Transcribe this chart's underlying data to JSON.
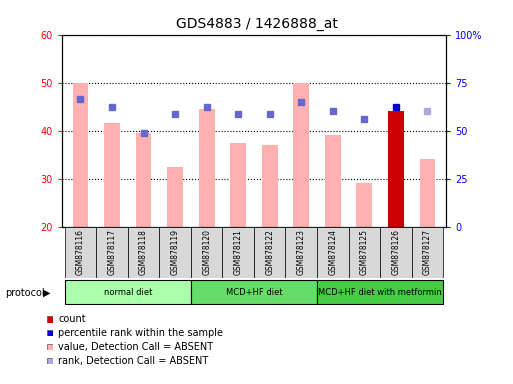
{
  "title": "GDS4883 / 1426888_at",
  "samples": [
    "GSM878116",
    "GSM878117",
    "GSM878118",
    "GSM878119",
    "GSM878120",
    "GSM878121",
    "GSM878122",
    "GSM878123",
    "GSM878124",
    "GSM878125",
    "GSM878126",
    "GSM878127"
  ],
  "bar_values": [
    50,
    41.5,
    39.5,
    32.5,
    44.5,
    37.5,
    37,
    50,
    39,
    29,
    44,
    34
  ],
  "bar_colors": [
    "#ffb0b0",
    "#ffb0b0",
    "#ffb0b0",
    "#ffb0b0",
    "#ffb0b0",
    "#ffb0b0",
    "#ffb0b0",
    "#ffb0b0",
    "#ffb0b0",
    "#ffb0b0",
    "#cc0000",
    "#ffb0b0"
  ],
  "dot_values": [
    46.5,
    45,
    39.5,
    43.5,
    45,
    43.5,
    43.5,
    46,
    44,
    42.5,
    45,
    44
  ],
  "dot_colors": [
    "#6666cc",
    "#6666cc",
    "#6666cc",
    "#6666cc",
    "#6666cc",
    "#6666cc",
    "#6666cc",
    "#6666cc",
    "#6666cc",
    "#6666cc",
    "#0000cc",
    "#aaaadd"
  ],
  "ylim": [
    20,
    60
  ],
  "y2lim": [
    0,
    100
  ],
  "yticks": [
    20,
    30,
    40,
    50,
    60
  ],
  "y2ticks": [
    0,
    25,
    50,
    75,
    100
  ],
  "y2ticklabels": [
    "0",
    "25",
    "50",
    "75",
    "100%"
  ],
  "protocols": [
    {
      "label": "normal diet",
      "start": 0,
      "end": 3,
      "color": "#aaffaa"
    },
    {
      "label": "MCD+HF diet",
      "start": 4,
      "end": 7,
      "color": "#66dd66"
    },
    {
      "label": "MCD+HF diet with metformin",
      "start": 8,
      "end": 11,
      "color": "#44cc44"
    }
  ],
  "protocol_label": "protocol",
  "legend_items": [
    {
      "label": "count",
      "color": "#cc0000"
    },
    {
      "label": "percentile rank within the sample",
      "color": "#0000cc"
    },
    {
      "label": "value, Detection Call = ABSENT",
      "color": "#ffb0b0"
    },
    {
      "label": "rank, Detection Call = ABSENT",
      "color": "#aaaadd"
    }
  ],
  "bar_bottom": 20,
  "bar_width": 0.5
}
